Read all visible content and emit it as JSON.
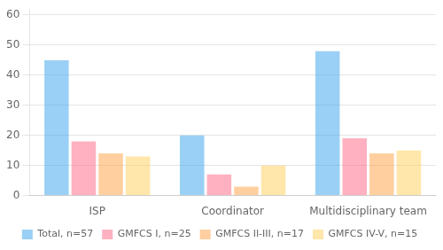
{
  "chart_data": {
    "type": "bar",
    "categories": [
      "ISP",
      "Coordinator",
      "Multidisciplinary team"
    ],
    "series": [
      {
        "name": "Total, n=57",
        "values": [
          45,
          20,
          48
        ]
      },
      {
        "name": "GMFCS I, n=25",
        "values": [
          18,
          7,
          19
        ]
      },
      {
        "name": "GMFCS II-III, n=17",
        "values": [
          14,
          3,
          14
        ]
      },
      {
        "name": "GMFCS IV-V, n=15",
        "values": [
          13,
          10,
          15
        ]
      }
    ],
    "ylim": [
      0,
      62
    ],
    "yticks": [
      0,
      10,
      20,
      30,
      40,
      50,
      60
    ],
    "grid": true,
    "legend": "bottom"
  }
}
